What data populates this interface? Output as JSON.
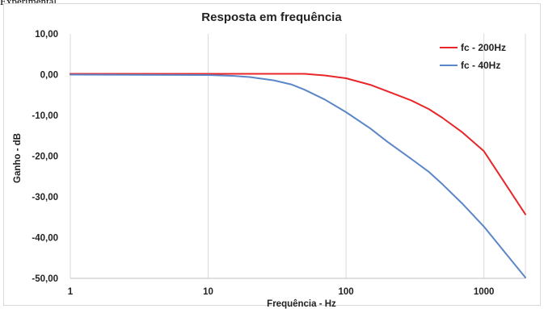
{
  "caption": "Experimental",
  "chart_data": {
    "type": "line",
    "title": "Resposta em frequência",
    "xlabel": "Frequência - Hz",
    "ylabel": "Ganho - dB",
    "xscale": "log",
    "xlim": [
      1,
      2000
    ],
    "ylim": [
      -50,
      10
    ],
    "xticks": [
      1,
      10,
      100,
      1000
    ],
    "xtick_labels": [
      "1",
      "10",
      "100",
      "1000"
    ],
    "yticks": [
      10,
      0,
      -10,
      -20,
      -30,
      -40,
      -50
    ],
    "ytick_labels": [
      "10,00",
      "0,00",
      "-10,00",
      "-20,00",
      "-30,00",
      "-40,00",
      "-50,00"
    ],
    "grid": "vertical-major",
    "legend_position": "top-right",
    "series": [
      {
        "name": "fc - 200Hz",
        "color": "#e8262a",
        "x": [
          1,
          10,
          50,
          70,
          100,
          150,
          200,
          300,
          400,
          500,
          700,
          1000,
          2000
        ],
        "y": [
          0.2,
          0.2,
          0.2,
          -0.2,
          -0.9,
          -2.5,
          -4.1,
          -6.4,
          -8.5,
          -10.6,
          -14.2,
          -18.8,
          -34.3
        ]
      },
      {
        "name": "fc - 40Hz",
        "color": "#5b86c8",
        "x": [
          1,
          10,
          15,
          20,
          30,
          40,
          50,
          70,
          100,
          150,
          200,
          300,
          400,
          500,
          700,
          1000,
          2000
        ],
        "y": [
          0.0,
          -0.1,
          -0.3,
          -0.6,
          -1.4,
          -2.4,
          -3.7,
          -6.1,
          -9.2,
          -13.2,
          -16.5,
          -20.8,
          -23.9,
          -26.9,
          -31.7,
          -37.3,
          -49.8
        ]
      }
    ]
  }
}
